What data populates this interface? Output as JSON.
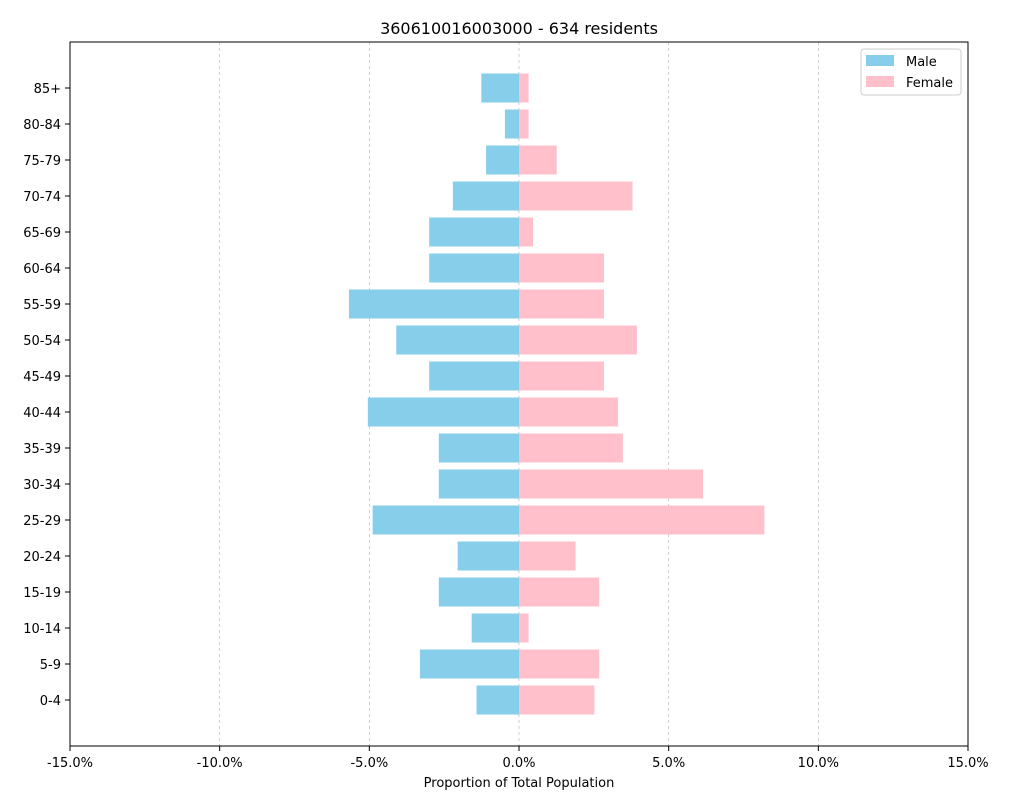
{
  "chart_data": {
    "type": "bar",
    "title": "360610016003000 - 634 residents",
    "xlabel": "Proportion of Total Population",
    "ylabel": "",
    "xlim": [
      -15,
      15
    ],
    "x_ticks": [
      "-15.0%",
      "-10.0%",
      "-5.0%",
      "0.0%",
      "5.0%",
      "10.0%",
      "15.0%"
    ],
    "x_tick_values": [
      -15,
      -10,
      -5,
      0,
      5,
      10,
      15
    ],
    "grid": "vertical dashed",
    "legend_position": "top-right",
    "categories": [
      "0-4",
      "5-9",
      "10-14",
      "15-19",
      "20-24",
      "25-29",
      "30-34",
      "35-39",
      "40-44",
      "45-49",
      "50-54",
      "55-59",
      "60-64",
      "65-69",
      "70-74",
      "75-79",
      "80-84",
      "85+"
    ],
    "series": [
      {
        "name": "Male",
        "color": "#87CEEB",
        "values": [
          -1.42,
          -3.31,
          -1.58,
          -2.68,
          -2.05,
          -4.89,
          -2.68,
          -2.68,
          -5.05,
          -3.0,
          -4.1,
          -5.68,
          -3.0,
          -3.0,
          -2.21,
          -1.1,
          -0.47,
          -1.26
        ]
      },
      {
        "name": "Female",
        "color": "#FFC0CB",
        "values": [
          2.52,
          2.68,
          0.32,
          2.68,
          1.89,
          8.2,
          6.15,
          3.47,
          3.31,
          2.84,
          3.94,
          2.84,
          2.84,
          0.47,
          3.79,
          1.26,
          0.32,
          0.32
        ]
      }
    ]
  }
}
